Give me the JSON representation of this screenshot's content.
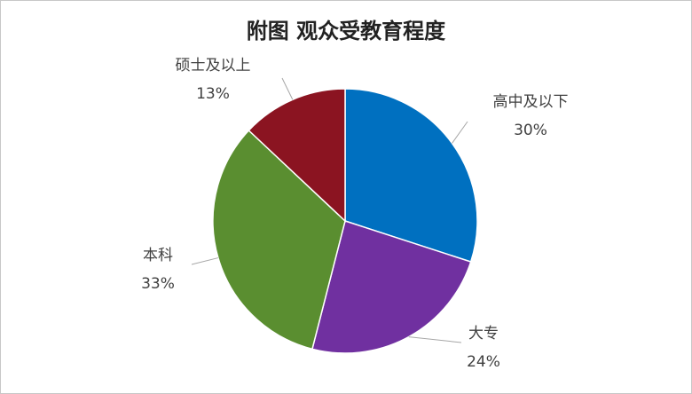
{
  "chart_data": {
    "type": "pie",
    "title": "附图  观众受教育程度",
    "categories": [
      "高中及以下",
      "大专",
      "本科",
      "硕士及以上"
    ],
    "values": [
      30,
      24,
      33,
      13
    ],
    "value_labels": [
      "30%",
      "24%",
      "33%",
      "13%"
    ],
    "colors": [
      "#0070c0",
      "#7030a0",
      "#5a8e30",
      "#8b1421"
    ]
  }
}
